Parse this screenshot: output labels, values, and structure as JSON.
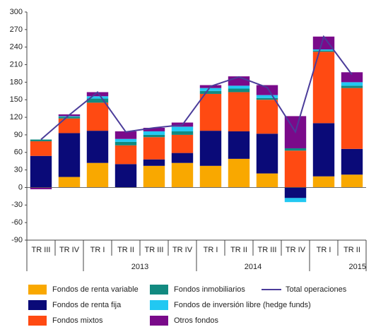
{
  "chart_data": {
    "type": "stacked_bar_line",
    "categories": [
      "TR III",
      "TR IV",
      "TR I",
      "TR II",
      "TR III",
      "TR IV",
      "TR I",
      "TR II",
      "TR III",
      "TR IV",
      "TR I",
      "TR II"
    ],
    "years": [
      null,
      null,
      "2013",
      "2013",
      "2013",
      "2013",
      "2014",
      "2014",
      "2014",
      "2014",
      "2015",
      "2015"
    ],
    "series": [
      {
        "name": "Fondos de renta variable",
        "color": "#f9a800",
        "values": [
          0,
          18,
          42,
          0,
          37,
          42,
          37,
          49,
          24,
          0,
          19,
          22
        ]
      },
      {
        "name": "Fondos de renta fija",
        "color": "#0a0a78",
        "values": [
          54,
          75,
          55,
          40,
          11,
          17,
          60,
          47,
          68,
          -18,
          91,
          44
        ]
      },
      {
        "name": "Fondos mixtos",
        "color": "#ff4a12",
        "values": [
          25,
          25,
          48,
          32,
          38,
          31,
          63,
          67,
          58,
          63,
          122,
          104
        ]
      },
      {
        "name": "Fondos inmobiliarios",
        "color": "#128a80",
        "values": [
          3,
          3,
          7,
          6,
          4,
          6,
          5,
          6,
          3,
          4,
          2,
          4
        ]
      },
      {
        "name": "Fondos de inversión libre (hedge funds)",
        "color": "#22c8f2",
        "values": [
          0,
          1,
          4,
          5,
          6,
          8,
          5,
          5,
          5,
          -7,
          2,
          6
        ]
      },
      {
        "name": "Otros fondos",
        "color": "#7a0a8a",
        "values": [
          -3,
          3,
          7,
          13,
          6,
          7,
          5,
          16,
          17,
          55,
          22,
          17
        ]
      },
      {
        "name": "Total operaciones",
        "color": "#4b3c9a",
        "type": "line",
        "values": [
          82,
          124,
          163,
          95,
          102,
          107,
          173,
          189,
          171,
          95,
          258,
          193
        ]
      }
    ],
    "ylim": [
      -90,
      300
    ],
    "yticks": [
      -90,
      -60,
      -30,
      0,
      30,
      60,
      90,
      120,
      150,
      180,
      210,
      240,
      270,
      300
    ]
  }
}
